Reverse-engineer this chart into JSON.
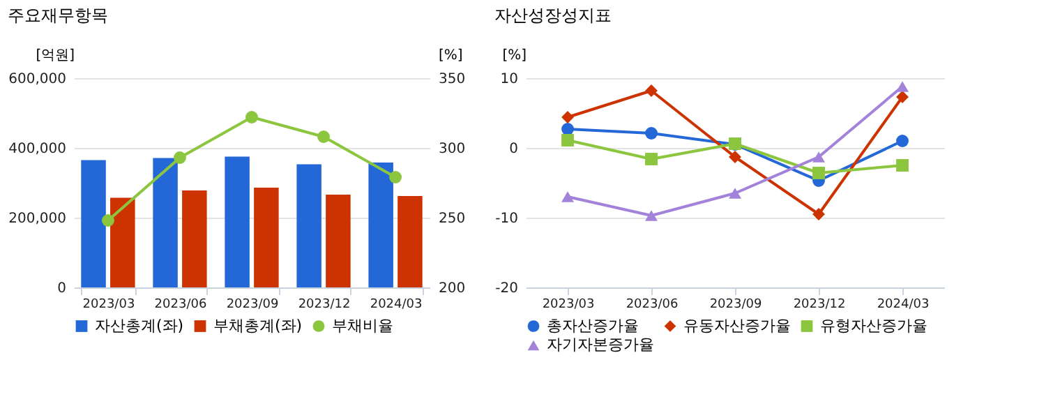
{
  "chart_data": [
    {
      "type": "bar",
      "title": "주요재무항목",
      "ylabel": "[억원]",
      "y2label": "[%]",
      "categories": [
        "2023/03",
        "2023/06",
        "2023/09",
        "2023/12",
        "2024/03"
      ],
      "series": [
        {
          "name": "자산총계(좌)",
          "color": "#2468d8",
          "values": [
            365000,
            371000,
            375000,
            353000,
            358000
          ]
        },
        {
          "name": "부채총계(좌)",
          "color": "#cc3300",
          "values": [
            257000,
            278000,
            286000,
            266000,
            262000
          ]
        },
        {
          "name": "부채비율",
          "color": "#8cc63e",
          "type": "line",
          "axis": "y2",
          "marker": "circle",
          "values": [
            248,
            293,
            322,
            308,
            279
          ]
        }
      ],
      "ylim": [
        0,
        600000
      ],
      "yticks": [
        {
          "value": 0,
          "label": "0"
        },
        {
          "value": 200000,
          "label": "200,000"
        },
        {
          "value": 400000,
          "label": "400,000"
        },
        {
          "value": 600000,
          "label": "600,000"
        }
      ],
      "y2lim": [
        200,
        350
      ],
      "y2ticks": [
        200,
        250,
        300,
        350
      ],
      "grid": "y",
      "legend": "bottom"
    },
    {
      "type": "line",
      "title": "자산성장성지표",
      "ylabel": "[%]",
      "categories": [
        "2023/03",
        "2023/06",
        "2023/09",
        "2023/12",
        "2024/03"
      ],
      "series": [
        {
          "name": "총자산증가율",
          "color": "#2468d8",
          "marker": "circle",
          "values": [
            2.7,
            2.1,
            0.5,
            -4.7,
            1.0
          ]
        },
        {
          "name": "유동자산증가율",
          "color": "#cc3300",
          "marker": "diamond",
          "values": [
            4.4,
            8.2,
            -1.3,
            -9.5,
            7.3
          ]
        },
        {
          "name": "유형자산증가율",
          "color": "#8cc63e",
          "marker": "square",
          "values": [
            1.1,
            -1.6,
            0.6,
            -3.6,
            -2.5
          ]
        },
        {
          "name": "자기자본증가율",
          "color": "#a383d9",
          "marker": "triangle",
          "values": [
            -7.0,
            -9.7,
            -6.5,
            -1.3,
            8.8
          ]
        }
      ],
      "ylim": [
        -20,
        10
      ],
      "yticks": [
        -20,
        -10,
        0,
        10
      ],
      "grid": "y",
      "legend": "bottom"
    }
  ]
}
